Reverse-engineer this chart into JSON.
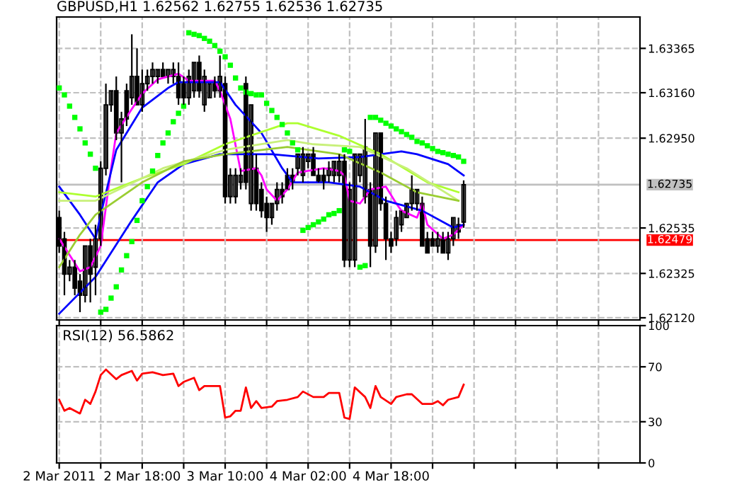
{
  "chart_data": [
    {
      "type": "candlestick",
      "title": "GBPUSD,H1 1.62562 1.62755 1.62536 1.62735",
      "x": [
        "2011-03-02T02:00",
        "2011-03-02T03:00",
        "2011-03-02T04:00",
        "2011-03-02T05:00",
        "2011-03-02T06:00",
        "2011-03-02T07:00",
        "2011-03-02T08:00",
        "2011-03-02T09:00",
        "2011-03-02T10:00",
        "2011-03-02T11:00",
        "2011-03-02T12:00",
        "2011-03-02T13:00",
        "2011-03-02T14:00",
        "2011-03-02T15:00",
        "2011-03-02T16:00",
        "2011-03-02T17:00",
        "2011-03-02T18:00",
        "2011-03-02T19:00",
        "2011-03-02T20:00",
        "2011-03-02T21:00",
        "2011-03-02T22:00",
        "2011-03-02T23:00",
        "2011-03-03T00:00",
        "2011-03-03T01:00",
        "2011-03-03T02:00",
        "2011-03-03T03:00",
        "2011-03-03T04:00",
        "2011-03-03T05:00",
        "2011-03-03T06:00",
        "2011-03-03T07:00",
        "2011-03-03T08:00",
        "2011-03-03T09:00",
        "2011-03-03T10:00",
        "2011-03-03T11:00",
        "2011-03-03T12:00",
        "2011-03-03T13:00",
        "2011-03-03T14:00",
        "2011-03-03T15:00",
        "2011-03-03T16:00",
        "2011-03-03T17:00",
        "2011-03-03T18:00",
        "2011-03-03T19:00",
        "2011-03-03T20:00",
        "2011-03-03T21:00",
        "2011-03-03T22:00",
        "2011-03-03T23:00",
        "2011-03-04T00:00",
        "2011-03-04T01:00",
        "2011-03-04T02:00",
        "2011-03-04T03:00",
        "2011-03-04T04:00",
        "2011-03-04T05:00",
        "2011-03-04T06:00",
        "2011-03-04T07:00",
        "2011-03-04T08:00",
        "2011-03-04T09:00",
        "2011-03-04T10:00",
        "2011-03-04T11:00",
        "2011-03-04T12:00",
        "2011-03-04T13:00",
        "2011-03-04T14:00",
        "2011-03-04T15:00",
        "2011-03-04T16:00",
        "2011-03-04T17:00",
        "2011-03-04T18:00",
        "2011-03-04T19:00",
        "2011-03-04T20:00",
        "2011-03-04T21:00",
        "2011-03-04T22:00",
        "2011-03-04T23:00",
        "2011-03-05T00:00",
        "2011-03-05T01:00",
        "2011-03-05T02:00",
        "2011-03-05T03:00",
        "2011-03-05T04:00",
        "2011-03-05T05:00",
        "2011-03-05T06:00",
        "2011-03-05T07:00",
        "2011-03-05T08:00"
      ],
      "ohlc": [
        [
          1.62583,
          1.62615,
          1.6242,
          1.62452
        ],
        [
          1.62485,
          1.62517,
          1.62224,
          1.62322
        ],
        [
          1.62322,
          1.62387,
          1.62289,
          1.62354
        ],
        [
          1.62354,
          1.62387,
          1.62224,
          1.62257
        ],
        [
          1.62289,
          1.62322,
          1.62146,
          1.62224
        ],
        [
          1.62224,
          1.62452,
          1.62191,
          1.62452
        ],
        [
          1.62452,
          1.62485,
          1.62191,
          1.62322
        ],
        [
          1.62354,
          1.6255,
          1.62224,
          1.62485
        ],
        [
          1.62485,
          1.62843,
          1.62452,
          1.62811
        ],
        [
          1.62811,
          1.63202,
          1.62778,
          1.63104
        ],
        [
          1.63104,
          1.63169,
          1.63072,
          1.63169
        ],
        [
          1.63169,
          1.63235,
          1.62941,
          1.62974
        ],
        [
          1.62974,
          1.63072,
          1.62746,
          1.63039
        ],
        [
          1.63169,
          1.63202,
          1.63006,
          1.63039
        ],
        [
          1.63137,
          1.6343,
          1.63104,
          1.63235
        ],
        [
          1.63235,
          1.63365,
          1.63104,
          1.63104
        ],
        [
          1.63104,
          1.63267,
          1.63072,
          1.63202
        ],
        [
          1.63202,
          1.63267,
          1.63169,
          1.63235
        ],
        [
          1.63235,
          1.633,
          1.63202,
          1.63267
        ],
        [
          1.63235,
          1.63267,
          1.63202,
          1.63267
        ],
        [
          1.63267,
          1.633,
          1.63235,
          1.63235
        ],
        [
          1.63235,
          1.63267,
          1.63202,
          1.63267
        ],
        [
          1.63235,
          1.633,
          1.63202,
          1.63267
        ],
        [
          1.63235,
          1.633,
          1.63104,
          1.63137
        ],
        [
          1.63202,
          1.63235,
          1.63104,
          1.63137
        ],
        [
          1.63137,
          1.63267,
          1.63104,
          1.63235
        ],
        [
          1.63169,
          1.633,
          1.63137,
          1.633
        ],
        [
          1.633,
          1.63332,
          1.63137,
          1.63169
        ],
        [
          1.63104,
          1.63267,
          1.63072,
          1.63235
        ],
        [
          1.63137,
          1.63202,
          1.63137,
          1.63202
        ],
        [
          1.63202,
          1.63235,
          1.63137,
          1.63169
        ],
        [
          1.63169,
          1.63332,
          1.63137,
          1.63235
        ],
        [
          1.63202,
          1.63235,
          1.62648,
          1.6268
        ],
        [
          1.6268,
          1.62811,
          1.62648,
          1.62778
        ],
        [
          1.6268,
          1.62811,
          1.62648,
          1.62778
        ],
        [
          1.62746,
          1.62811,
          1.62713,
          1.62778
        ],
        [
          1.63202,
          1.63235,
          1.62713,
          1.62746
        ],
        [
          1.62648,
          1.63104,
          1.62615,
          1.63104
        ],
        [
          1.62811,
          1.62876,
          1.62615,
          1.62648
        ],
        [
          1.62713,
          1.62746,
          1.62583,
          1.62615
        ],
        [
          1.62648,
          1.6268,
          1.62517,
          1.62583
        ],
        [
          1.62583,
          1.62648,
          1.6255,
          1.62648
        ],
        [
          1.62648,
          1.62746,
          1.62615,
          1.62713
        ],
        [
          1.62713,
          1.62746,
          1.62648,
          1.6268
        ],
        [
          1.62778,
          1.62811,
          1.62713,
          1.62713
        ],
        [
          1.62778,
          1.62811,
          1.62713,
          1.62746
        ],
        [
          1.62811,
          1.62876,
          1.62778,
          1.62876
        ],
        [
          1.62778,
          1.62909,
          1.62746,
          1.62876
        ],
        [
          1.62843,
          1.62876,
          1.62811,
          1.62876
        ],
        [
          1.62876,
          1.62909,
          1.62778,
          1.62778
        ],
        [
          1.62778,
          1.62811,
          1.62746,
          1.62746
        ],
        [
          1.62778,
          1.62811,
          1.62713,
          1.62746
        ],
        [
          1.62778,
          1.62843,
          1.62746,
          1.62811
        ],
        [
          1.62778,
          1.62843,
          1.62746,
          1.62843
        ],
        [
          1.62778,
          1.62876,
          1.62746,
          1.62843
        ],
        [
          1.62843,
          1.62876,
          1.62354,
          1.62387
        ],
        [
          1.62387,
          1.62746,
          1.62354,
          1.62713
        ],
        [
          1.62387,
          1.62876,
          1.62354,
          1.62876
        ],
        [
          1.62778,
          1.62876,
          1.62746,
          1.62876
        ],
        [
          1.6268,
          1.63039,
          1.62648,
          1.62909
        ],
        [
          1.62713,
          1.62746,
          1.62354,
          1.62452
        ],
        [
          1.62452,
          1.62974,
          1.6242,
          1.62974
        ],
        [
          1.62974,
          1.62974,
          1.62615,
          1.62648
        ],
        [
          1.62648,
          1.6268,
          1.62387,
          1.62485
        ],
        [
          1.62485,
          1.62517,
          1.6242,
          1.62452
        ],
        [
          1.62485,
          1.62615,
          1.62452,
          1.62583
        ],
        [
          1.6255,
          1.62615,
          1.62517,
          1.62615
        ],
        [
          1.62583,
          1.62648,
          1.62583,
          1.62648
        ],
        [
          1.62648,
          1.62778,
          1.62615,
          1.62713
        ],
        [
          1.62648,
          1.62713,
          1.62615,
          1.62713
        ],
        [
          1.62648,
          1.6268,
          1.62452,
          1.62452
        ],
        [
          1.62485,
          1.62517,
          1.6242,
          1.6242
        ],
        [
          1.62485,
          1.62517,
          1.62452,
          1.62452
        ],
        [
          1.62452,
          1.62517,
          1.6242,
          1.62485
        ],
        [
          1.62485,
          1.62517,
          1.6242,
          1.6242
        ],
        [
          1.6242,
          1.62517,
          1.62387,
          1.62485
        ],
        [
          1.62485,
          1.62583,
          1.62452,
          1.62583
        ],
        [
          1.62517,
          1.62583,
          1.62485,
          1.6255
        ],
        [
          1.62562,
          1.62755,
          1.62536,
          1.62735
        ]
      ],
      "series": [
        {
          "type": "line",
          "color": "#ff00ff",
          "x": [
            "2011-03-02T02:00",
            "2011-03-02T06:00",
            "2011-03-02T08:00",
            "2011-03-02T10:00",
            "2011-03-02T12:00",
            "2011-03-02T13:00",
            "2011-03-02T16:00",
            "2011-03-02T18:00",
            "2011-03-02T21:00",
            "2011-03-03T01:00",
            "2011-03-03T03:00",
            "2011-03-03T08:00",
            "2011-03-03T09:00",
            "2011-03-03T11:00",
            "2011-03-03T13:00",
            "2011-03-03T16:00",
            "2011-03-03T17:00",
            "2011-03-03T18:00",
            "2011-03-03T20:00",
            "2011-03-03T22:00",
            "2011-03-04T00:00",
            "2011-03-04T05:00",
            "2011-03-04T08:00",
            "2011-03-04T09:00",
            "2011-03-04T10:00",
            "2011-03-04T12:00",
            "2011-03-04T14:00",
            "2011-03-04T17:00",
            "2011-03-04T19:00",
            "2011-03-04T20:00",
            "2011-03-04T23:00",
            "2011-03-05T00:00",
            "2011-03-05T01:00",
            "2011-03-05T04:00",
            "2011-03-05T06:00",
            "2011-03-05T08:00"
          ],
          "values": [
            1.62485,
            1.62335,
            1.62354,
            1.62452,
            1.62811,
            1.62974,
            1.63085,
            1.63156,
            1.63222,
            1.63248,
            1.63215,
            1.63215,
            1.63169,
            1.63039,
            1.62798,
            1.62811,
            1.62778,
            1.62713,
            1.62661,
            1.62713,
            1.62791,
            1.62811,
            1.62798,
            1.62778,
            1.62661,
            1.62648,
            1.62713,
            1.62726,
            1.62648,
            1.62615,
            1.62583,
            1.62648,
            1.6255,
            1.62485,
            1.62504,
            1.6255
          ]
        },
        {
          "type": "line",
          "color": "#0000ff",
          "x": [
            "2011-03-02T02:00",
            "2011-03-02T06:00",
            "2011-03-02T09:00",
            "2011-03-02T10:00",
            "2011-03-02T13:00",
            "2011-03-02T18:00",
            "2011-03-02T23:00",
            "2011-03-03T01:00",
            "2011-03-03T09:00",
            "2011-03-03T12:00",
            "2011-03-03T17:00",
            "2011-03-03T21:00",
            "2011-03-03T23:00",
            "2011-03-04T06:00",
            "2011-03-04T12:00",
            "2011-03-04T17:00",
            "2011-03-05T00:00",
            "2011-03-05T06:00",
            "2011-03-05T08:00"
          ],
          "values": [
            1.62726,
            1.62596,
            1.62485,
            1.62596,
            1.62896,
            1.63091,
            1.63182,
            1.63209,
            1.63209,
            1.63104,
            1.62974,
            1.62811,
            1.62746,
            1.62746,
            1.62726,
            1.62661,
            1.62615,
            1.62537,
            1.6255
          ]
        },
        {
          "type": "line",
          "color": "#0000ff",
          "x": [
            "2011-03-02T02:00",
            "2011-03-02T09:00",
            "2011-03-02T16:00",
            "2011-03-02T21:00",
            "2011-03-03T02:00",
            "2011-03-03T09:00",
            "2011-03-03T19:00",
            "2011-03-04T04:00",
            "2011-03-04T12:00",
            "2011-03-04T20:00",
            "2011-03-04T23:00",
            "2011-03-05T05:00",
            "2011-03-05T08:00"
          ],
          "values": [
            1.62139,
            1.62309,
            1.6257,
            1.62746,
            1.6283,
            1.62876,
            1.62876,
            1.62856,
            1.62863,
            1.62889,
            1.62876,
            1.6283,
            1.62778
          ]
        },
        {
          "type": "line",
          "color": "#adff2f",
          "x": [
            "2011-03-02T02:00",
            "2011-03-02T09:00",
            "2011-03-02T18:00",
            "2011-03-03T02:00",
            "2011-03-03T10:00",
            "2011-03-03T22:00",
            "2011-03-04T00:00",
            "2011-03-04T08:00",
            "2011-03-04T16:00",
            "2011-03-05T01:00",
            "2011-03-05T07:00"
          ],
          "values": [
            1.627,
            1.6268,
            1.62765,
            1.6283,
            1.62922,
            1.63019,
            1.63019,
            1.62961,
            1.62876,
            1.62746,
            1.627
          ]
        },
        {
          "type": "line",
          "color": "#c8f07a",
          "x": [
            "2011-03-02T02:00",
            "2011-03-02T09:00",
            "2011-03-02T22:00",
            "2011-03-03T10:00",
            "2011-03-03T22:00",
            "2011-03-04T03:00",
            "2011-03-04T12:00",
            "2011-03-04T21:00",
            "2011-03-05T07:00"
          ],
          "values": [
            1.62661,
            1.62661,
            1.62811,
            1.62896,
            1.62941,
            1.62922,
            1.62909,
            1.62811,
            1.62661
          ]
        },
        {
          "type": "line",
          "color": "#9acd32",
          "x": [
            "2011-03-02T02:00",
            "2011-03-02T06:00",
            "2011-03-02T09:00",
            "2011-03-02T18:00",
            "2011-03-03T02:00",
            "2011-03-03T10:00",
            "2011-03-03T22:00",
            "2011-03-04T08:00",
            "2011-03-04T16:00",
            "2011-03-04T23:00",
            "2011-03-05T07:00"
          ],
          "values": [
            1.62354,
            1.62504,
            1.62596,
            1.62746,
            1.62843,
            1.62876,
            1.62909,
            1.62876,
            1.62791,
            1.627,
            1.62661
          ]
        },
        {
          "type": "scatter",
          "color": "#00ff00",
          "marker": "square",
          "values": [
            1.63182,
            1.6315,
            1.63098,
            1.63046,
            1.62993,
            1.62928,
            1.62876,
            1.62811,
            1.62146,
            1.62159,
            1.62211,
            1.62263,
            1.62341,
            1.62407,
            1.62472,
            1.6257,
            1.62661,
            1.62726,
            1.62798,
            1.6287,
            1.62928,
            1.62974,
            1.63026,
            1.63065,
            1.63098,
            1.63437,
            1.6343,
            1.63424,
            1.63411,
            1.63398,
            1.63378,
            1.63352,
            1.63326,
            1.63287,
            1.63228,
            1.63182,
            1.63163,
            1.63156,
            1.6315,
            1.6315,
            1.63111,
            1.63078,
            1.63046,
            1.63013,
            1.62974,
            1.62928,
            1.62896,
            1.62524,
            1.62537,
            1.6255,
            1.62563,
            1.62576,
            1.62596,
            1.62602,
            1.62615,
            1.62896,
            1.62889,
            null,
            1.62354,
            1.62361,
            1.63046,
            1.63046,
            1.63033,
            1.63019,
            1.63006,
            1.62993,
            1.6298,
            1.62967,
            1.62954,
            1.62935,
            1.62928,
            1.62915,
            1.62902,
            1.62889,
            1.62883,
            1.62876,
            1.6287,
            1.62863,
            1.62843
          ]
        }
      ],
      "xlim": [
        "2011-03-02T01:30",
        "2011-03-06T18:00"
      ],
      "ylim": [
        1.6211,
        1.6351
      ],
      "xticks": [
        {
          "value": "2011-03-02T02:00",
          "label": null
        },
        {
          "value": "2011-03-02T10:00",
          "label": null
        },
        {
          "value": "2011-03-02T18:00",
          "label": null
        },
        {
          "value": "2011-03-03T02:00",
          "label": null
        },
        {
          "value": "2011-03-03T10:00",
          "label": null
        },
        {
          "value": "2011-03-03T18:00",
          "label": null
        },
        {
          "value": "2011-03-04T02:00",
          "label": null
        },
        {
          "value": "2011-03-04T10:00",
          "label": null
        },
        {
          "value": "2011-03-04T18:00",
          "label": null
        },
        {
          "value": "2011-03-05T02:00",
          "label": null
        },
        {
          "value": "2011-03-05T10:00",
          "label": null
        },
        {
          "value": "2011-03-05T18:00",
          "label": null
        },
        {
          "value": "2011-03-06T02:00",
          "label": null
        },
        {
          "value": "2011-03-06T10:00",
          "label": null
        }
      ],
      "yticks": [
        {
          "value": 1.6212,
          "label": "1.62120"
        },
        {
          "value": 1.62325,
          "label": "1.62325"
        },
        {
          "value": 1.62535,
          "label": "1.62535"
        },
        {
          "value": 1.6295,
          "label": "1.62950"
        },
        {
          "value": 1.6316,
          "label": "1.63160"
        },
        {
          "value": 1.63365,
          "label": "1.63365"
        }
      ],
      "grid": true,
      "tick_labels": "y",
      "ref_lines": [
        {
          "axis": "y",
          "value": 1.62735,
          "label": "1.62735",
          "color": "#c0c0c0"
        },
        {
          "axis": "y",
          "value": 1.62479,
          "label": "1.62479",
          "color": "#ff0000"
        }
      ]
    },
    {
      "type": "line",
      "title": "RSI(12) 56.5862",
      "series": [
        {
          "color": "#ff0000",
          "x": [
            "2011-03-02T02:00",
            "2011-03-02T03:00",
            "2011-03-02T04:00",
            "2011-03-02T06:00",
            "2011-03-02T07:00",
            "2011-03-02T08:00",
            "2011-03-02T09:00",
            "2011-03-02T10:00",
            "2011-03-02T11:00",
            "2011-03-02T13:00",
            "2011-03-02T14:00",
            "2011-03-02T16:00",
            "2011-03-02T17:00",
            "2011-03-02T18:00",
            "2011-03-02T20:00",
            "2011-03-02T22:00",
            "2011-03-03T00:00",
            "2011-03-03T01:00",
            "2011-03-03T02:00",
            "2011-03-03T04:00",
            "2011-03-03T05:00",
            "2011-03-03T06:00",
            "2011-03-03T09:00",
            "2011-03-03T10:00",
            "2011-03-03T11:00",
            "2011-03-03T12:00",
            "2011-03-03T13:00",
            "2011-03-03T14:00",
            "2011-03-03T15:00",
            "2011-03-03T16:00",
            "2011-03-03T17:00",
            "2011-03-03T19:00",
            "2011-03-03T20:00",
            "2011-03-03T22:00",
            "2011-03-04T00:00",
            "2011-03-04T01:00",
            "2011-03-04T03:00",
            "2011-03-04T05:00",
            "2011-03-04T06:00",
            "2011-03-04T08:00",
            "2011-03-04T09:00",
            "2011-03-04T10:00",
            "2011-03-04T11:00",
            "2011-03-04T13:00",
            "2011-03-04T14:00",
            "2011-03-04T15:00",
            "2011-03-04T16:00",
            "2011-03-04T18:00",
            "2011-03-04T19:00",
            "2011-03-04T21:00",
            "2011-03-04T22:00",
            "2011-03-05T00:00",
            "2011-03-05T02:00",
            "2011-03-05T03:00",
            "2011-03-05T04:00",
            "2011-03-05T05:00",
            "2011-03-05T07:00",
            "2011-03-05T08:00"
          ],
          "values": [
            46,
            38,
            40,
            36,
            46,
            43,
            52,
            64,
            68,
            61,
            64,
            67,
            60,
            65,
            66,
            64,
            65,
            56,
            59,
            62,
            53,
            56,
            56,
            33,
            34,
            38,
            38,
            55,
            40,
            45,
            40,
            41,
            45,
            46,
            48,
            52,
            48,
            48,
            51,
            51,
            33,
            32,
            55,
            48,
            40,
            56,
            48,
            43,
            48,
            50,
            50,
            43,
            43,
            45,
            42,
            46,
            48,
            57
          ]
        }
      ],
      "xlim": [
        "2011-03-02T01:30",
        "2011-03-06T18:00"
      ],
      "ylim": [
        0,
        100
      ],
      "xticks": [
        {
          "value": "2011-03-02T02:00",
          "label": "2 Mar 2011"
        },
        {
          "value": "2011-03-02T10:00",
          "label": null
        },
        {
          "value": "2011-03-02T18:00",
          "label": "2 Mar 18:00"
        },
        {
          "value": "2011-03-03T02:00",
          "label": null
        },
        {
          "value": "2011-03-03T10:00",
          "label": "3 Mar 10:00"
        },
        {
          "value": "2011-03-03T18:00",
          "label": null
        },
        {
          "value": "2011-03-04T02:00",
          "label": "4 Mar 02:00"
        },
        {
          "value": "2011-03-04T10:00",
          "label": null
        },
        {
          "value": "2011-03-04T18:00",
          "label": "4 Mar 18:00"
        },
        {
          "value": "2011-03-05T02:00",
          "label": null
        },
        {
          "value": "2011-03-05T10:00",
          "label": null
        },
        {
          "value": "2011-03-05T18:00",
          "label": null
        },
        {
          "value": "2011-03-06T02:00",
          "label": null
        },
        {
          "value": "2011-03-06T10:00",
          "label": null
        }
      ],
      "yticks": [
        0,
        30,
        70,
        100
      ],
      "grid": true
    }
  ]
}
